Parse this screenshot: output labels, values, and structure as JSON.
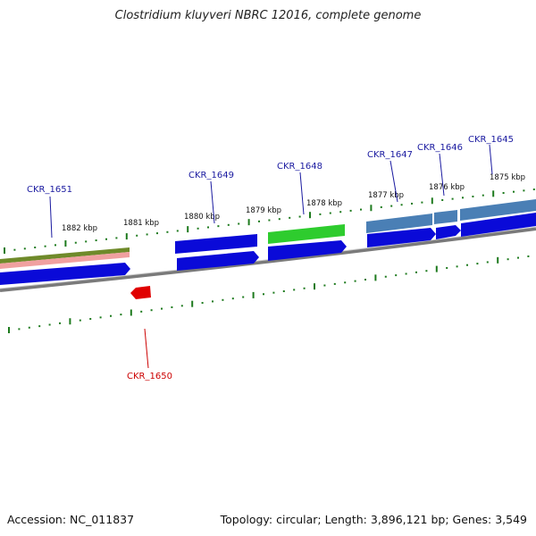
{
  "title": "Clostridium kluyveri NBRC 12016, complete genome",
  "footer": {
    "accession": "Accession: NC_011837",
    "topology": "Topology: circular; Length: 3,896,121 bp; Genes: 3,549"
  },
  "colors": {
    "forward_gene": "#0a0ad8",
    "reverse_gene": "#e00000",
    "label_forward": "#1a1aa0",
    "label_reverse": "#cc0000",
    "tick": "#1d7a1d",
    "backbone": "#7a7a7a",
    "olive": "#6f8a2a",
    "pink": "#f0a0a0",
    "green": "#2ecc2e",
    "steelblue": "#4a7fb5"
  },
  "scale_labels": [
    "1882 kbp",
    "1881 kbp",
    "1880 kbp",
    "1879 kbp",
    "1878 kbp",
    "1877 kbp",
    "1876 kbp",
    "1875 kbp"
  ],
  "genes": [
    {
      "id": "CKR_1651",
      "strand": "forward"
    },
    {
      "id": "CKR_1650",
      "strand": "reverse"
    },
    {
      "id": "CKR_1649",
      "strand": "forward"
    },
    {
      "id": "CKR_1648",
      "strand": "forward"
    },
    {
      "id": "CKR_1647",
      "strand": "forward"
    },
    {
      "id": "CKR_1646",
      "strand": "forward"
    },
    {
      "id": "CKR_1645",
      "strand": "forward"
    }
  ]
}
